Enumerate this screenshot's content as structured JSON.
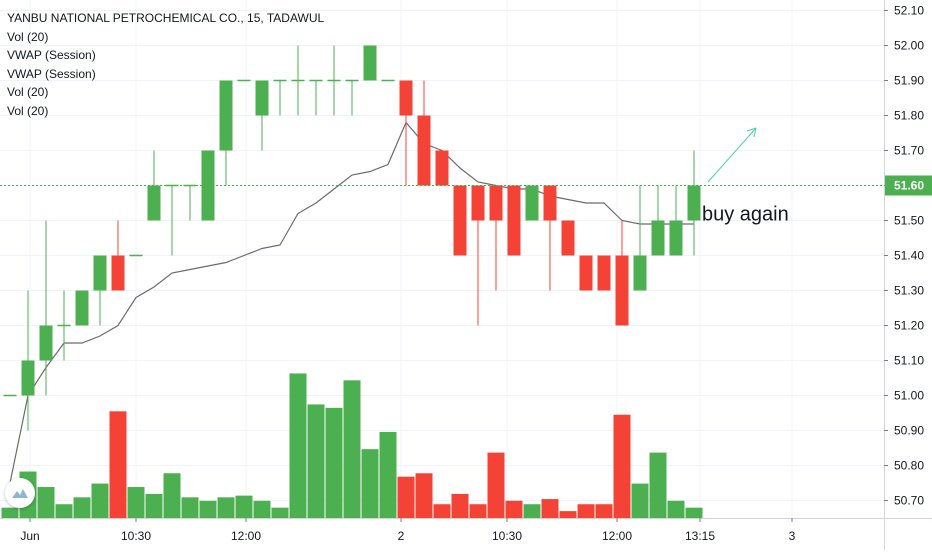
{
  "header": {
    "symbol_line": "YANBU NATIONAL PETROCHEMICAL CO., 15, TADAWUL",
    "indicators": [
      "Vol (20)",
      "VWAP (Session)",
      "VWAP (Session)",
      "Vol (20)",
      "Vol (20)"
    ]
  },
  "colors": {
    "up": "#4caf50",
    "down": "#f44336",
    "vwap": "#6b6b6b",
    "last_price_line": "#4caf50",
    "grid": "#f0f3fa",
    "axis_text": "#131722",
    "annotation_arrow": "#4fd1b0"
  },
  "chart_data": {
    "type": "candlestick",
    "title": "YANBU NATIONAL PETROCHEMICAL CO., 15, TADAWUL",
    "interval": "15",
    "exchange": "TADAWUL",
    "ylim": [
      50.65,
      52.13
    ],
    "y_ticks": [
      "52.10",
      "52.00",
      "51.90",
      "51.80",
      "51.70",
      "51.60",
      "51.50",
      "51.40",
      "51.30",
      "51.20",
      "51.10",
      "51.00",
      "50.90",
      "50.80",
      "50.70"
    ],
    "x_ticks": [
      "Jun",
      "10:30",
      "12:00",
      "2",
      "10:30",
      "12:00",
      "13:15",
      "3"
    ],
    "last_price": "51.60",
    "grid": true,
    "annotation": "buy again",
    "candles": [
      {
        "o": 51.0,
        "h": 51.0,
        "l": 51.0,
        "c": 51.0,
        "v": 30
      },
      {
        "o": 51.0,
        "h": 51.3,
        "l": 50.9,
        "c": 51.1,
        "v": 135
      },
      {
        "o": 51.1,
        "h": 51.5,
        "l": 51.0,
        "c": 51.2,
        "v": 90
      },
      {
        "o": 51.2,
        "h": 51.3,
        "l": 51.1,
        "c": 51.2,
        "v": 40
      },
      {
        "o": 51.2,
        "h": 51.3,
        "l": 51.2,
        "c": 51.3,
        "v": 60
      },
      {
        "o": 51.3,
        "h": 51.4,
        "l": 51.2,
        "c": 51.4,
        "v": 100
      },
      {
        "o": 51.4,
        "h": 51.5,
        "l": 51.3,
        "c": 51.3,
        "v": 310
      },
      {
        "o": 51.4,
        "h": 51.4,
        "l": 51.4,
        "c": 51.4,
        "v": 90
      },
      {
        "o": 51.5,
        "h": 51.7,
        "l": 51.5,
        "c": 51.6,
        "v": 70
      },
      {
        "o": 51.6,
        "h": 51.6,
        "l": 51.4,
        "c": 51.6,
        "v": 130
      },
      {
        "o": 51.6,
        "h": 51.6,
        "l": 51.5,
        "c": 51.6,
        "v": 60
      },
      {
        "o": 51.5,
        "h": 51.7,
        "l": 51.5,
        "c": 51.7,
        "v": 50
      },
      {
        "o": 51.7,
        "h": 51.9,
        "l": 51.6,
        "c": 51.9,
        "v": 60
      },
      {
        "o": 51.9,
        "h": 51.9,
        "l": 51.9,
        "c": 51.9,
        "v": 65
      },
      {
        "o": 51.8,
        "h": 51.9,
        "l": 51.7,
        "c": 51.9,
        "v": 50
      },
      {
        "o": 51.9,
        "h": 51.9,
        "l": 51.8,
        "c": 51.9,
        "v": 30
      },
      {
        "o": 51.9,
        "h": 52.0,
        "l": 51.8,
        "c": 51.9,
        "v": 420
      },
      {
        "o": 51.9,
        "h": 51.9,
        "l": 51.8,
        "c": 51.9,
        "v": 330
      },
      {
        "o": 51.9,
        "h": 52.0,
        "l": 51.8,
        "c": 51.9,
        "v": 320
      },
      {
        "o": 51.9,
        "h": 51.9,
        "l": 51.8,
        "c": 51.9,
        "v": 400
      },
      {
        "o": 51.9,
        "h": 52.0,
        "l": 51.9,
        "c": 52.0,
        "v": 200
      },
      {
        "o": 51.9,
        "h": 51.9,
        "l": 51.9,
        "c": 51.9,
        "v": 250
      },
      {
        "o": 51.9,
        "h": 51.9,
        "l": 51.6,
        "c": 51.8,
        "v": 120
      },
      {
        "o": 51.8,
        "h": 51.9,
        "l": 51.6,
        "c": 51.6,
        "v": 130
      },
      {
        "o": 51.7,
        "h": 51.7,
        "l": 51.6,
        "c": 51.6,
        "v": 40
      },
      {
        "o": 51.6,
        "h": 51.6,
        "l": 51.4,
        "c": 51.4,
        "v": 70
      },
      {
        "o": 51.6,
        "h": 51.6,
        "l": 51.2,
        "c": 51.5,
        "v": 40
      },
      {
        "o": 51.6,
        "h": 51.6,
        "l": 51.3,
        "c": 51.5,
        "v": 190
      },
      {
        "o": 51.6,
        "h": 51.6,
        "l": 51.4,
        "c": 51.4,
        "v": 50
      },
      {
        "o": 51.5,
        "h": 51.6,
        "l": 51.5,
        "c": 51.6,
        "v": 40
      },
      {
        "o": 51.6,
        "h": 51.6,
        "l": 51.3,
        "c": 51.5,
        "v": 55
      },
      {
        "o": 51.5,
        "h": 51.5,
        "l": 51.4,
        "c": 51.4,
        "v": 20
      },
      {
        "o": 51.4,
        "h": 51.4,
        "l": 51.3,
        "c": 51.3,
        "v": 40
      },
      {
        "o": 51.4,
        "h": 51.4,
        "l": 51.3,
        "c": 51.3,
        "v": 40
      },
      {
        "o": 51.4,
        "h": 51.5,
        "l": 51.2,
        "c": 51.2,
        "v": 300
      },
      {
        "o": 51.3,
        "h": 51.6,
        "l": 51.3,
        "c": 51.4,
        "v": 100
      },
      {
        "o": 51.4,
        "h": 51.6,
        "l": 51.4,
        "c": 51.5,
        "v": 190
      },
      {
        "o": 51.4,
        "h": 51.6,
        "l": 51.4,
        "c": 51.5,
        "v": 50
      },
      {
        "o": 51.5,
        "h": 51.7,
        "l": 51.4,
        "c": 51.6,
        "v": 30
      }
    ],
    "vwap": [
      50.75,
      51.0,
      51.08,
      51.15,
      51.15,
      51.17,
      51.2,
      51.28,
      51.31,
      51.35,
      51.36,
      51.37,
      51.38,
      51.4,
      51.42,
      51.43,
      51.52,
      51.55,
      51.59,
      51.63,
      51.64,
      51.66,
      51.78,
      51.72,
      51.7,
      51.65,
      51.61,
      51.6,
      51.59,
      51.59,
      51.57,
      51.56,
      51.55,
      51.55,
      51.5,
      51.49,
      51.49,
      51.49,
      51.49
    ],
    "volume_scale_max": 430
  }
}
